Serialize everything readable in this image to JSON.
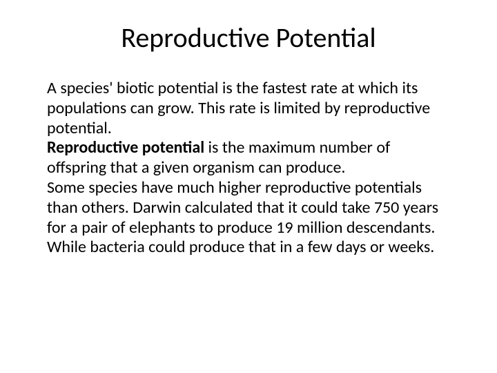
{
  "slide": {
    "title": "Reproductive Potential",
    "p1_a": "A species'  biotic potential is the fastest rate at which its populations can grow. This rate is limited by reproductive potential.",
    "p2_bold": "Reproductive potential",
    "p2_rest": " is the maximum number of offspring that a given organism can produce.",
    "p3": "Some species have much higher reproductive potentials than others. Darwin calculated that it could take 750 years for a pair of elephants to produce 19 million descendants. While bacteria could produce that in a few days or weeks."
  },
  "style": {
    "background_color": "#ffffff",
    "text_color": "#000000",
    "title_fontsize": 40,
    "body_fontsize": 24,
    "font_family": "Calibri"
  }
}
